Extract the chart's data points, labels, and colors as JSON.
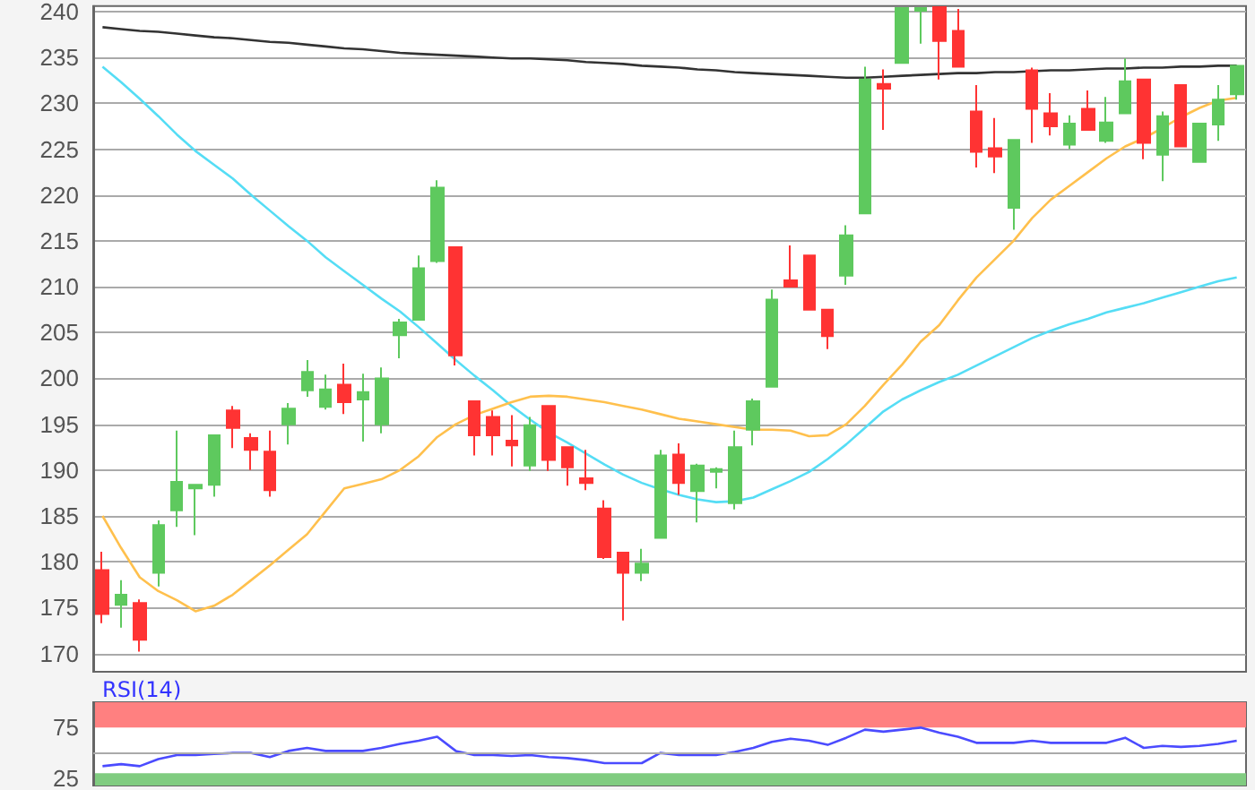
{
  "chart_data": [
    {
      "type": "candlestick",
      "categories": [
        null,
        null,
        null,
        null,
        null,
        null,
        null,
        null,
        null,
        null,
        null,
        null,
        null,
        null,
        null,
        null,
        null,
        null,
        null,
        null,
        null,
        null,
        null,
        null,
        null,
        null,
        null,
        null,
        null,
        null,
        null,
        null,
        null,
        null,
        null,
        null,
        null,
        null,
        null,
        null,
        null,
        null,
        null,
        null,
        null,
        null,
        null,
        null,
        null,
        null,
        null,
        null,
        null,
        null,
        null,
        null,
        null,
        null,
        null,
        null,
        null,
        null
      ],
      "ohlc": [
        [
          179.1,
          181.1,
          173.3,
          174.3
        ],
        [
          175.3,
          178,
          172.8,
          176.4
        ],
        [
          175.5,
          175.9,
          170.2,
          171.5
        ],
        [
          178.8,
          184.5,
          177.3,
          184
        ],
        [
          185.6,
          194.3,
          183.8,
          188.7
        ],
        [
          188,
          188.5,
          182.9,
          188.4
        ],
        [
          188.4,
          193.8,
          187.1,
          193.8
        ],
        [
          196.5,
          197,
          192.4,
          194.6
        ],
        [
          193.5,
          194,
          190,
          192.2
        ],
        [
          192,
          194.3,
          187.1,
          187.8
        ],
        [
          195,
          197.3,
          192.8,
          196.7
        ],
        [
          198.7,
          202,
          198,
          200.7
        ],
        [
          196.9,
          200.4,
          196.6,
          198.8
        ],
        [
          199.3,
          201.6,
          196.1,
          197.4
        ],
        [
          197.7,
          200.5,
          193.1,
          198.5
        ],
        [
          195,
          201.2,
          194,
          200
        ],
        [
          204.7,
          206.5,
          202.2,
          206.1
        ],
        [
          206.4,
          213.4,
          206.4,
          212
        ],
        [
          212.8,
          221.6,
          212.6,
          220.8
        ],
        [
          214.3,
          214.3,
          201.4,
          202.5
        ],
        [
          197.5,
          197.5,
          191.6,
          193.8
        ],
        [
          195.8,
          196.5,
          191.6,
          193.8
        ],
        [
          193.2,
          196,
          190.4,
          192.7
        ],
        [
          190.5,
          195.8,
          189.9,
          194.9
        ],
        [
          197,
          197,
          189.9,
          191.1
        ],
        [
          192.5,
          192.5,
          188.3,
          190.3
        ],
        [
          189.1,
          192.2,
          187.8,
          188.6
        ],
        [
          185.8,
          186.7,
          180.3,
          180.5
        ],
        [
          181,
          181,
          173.6,
          178.8
        ],
        [
          178.8,
          181.4,
          177.9,
          179.8
        ],
        [
          182.6,
          192.2,
          182.6,
          191.6
        ],
        [
          191.7,
          192.9,
          187.3,
          188.6
        ],
        [
          187.7,
          190.7,
          184.3,
          190.5
        ],
        [
          189.8,
          190.3,
          188,
          190.1
        ],
        [
          186.4,
          194.3,
          185.7,
          192.5
        ],
        [
          194.4,
          197.8,
          192.7,
          197.5
        ],
        [
          199.1,
          209.7,
          199.1,
          208.6
        ],
        [
          210.7,
          214.5,
          210,
          210
        ],
        [
          213.4,
          213.4,
          207.5,
          207.5
        ],
        [
          207.5,
          207.5,
          203.2,
          204.6
        ],
        [
          211.2,
          216.7,
          210.2,
          215.6
        ],
        [
          218,
          234,
          218,
          232.6
        ],
        [
          232.1,
          233.7,
          227.1,
          231.6
        ],
        [
          234.4,
          240.5,
          234.4,
          240.4
        ],
        [
          240.1,
          240.5,
          236.5,
          240.4
        ],
        [
          240.5,
          240.5,
          232.6,
          236.8
        ],
        [
          237.9,
          240.3,
          234,
          234
        ],
        [
          229.1,
          232,
          223,
          224.7
        ],
        [
          225.1,
          228.4,
          222.4,
          224.2
        ],
        [
          218.6,
          226,
          216.2,
          226
        ],
        [
          233.6,
          233.9,
          225.7,
          229.4
        ],
        [
          228.9,
          231.1,
          226.5,
          227.5
        ],
        [
          225.5,
          228.7,
          225,
          227.8
        ],
        [
          229.4,
          231.4,
          227.1,
          227.1
        ],
        [
          225.9,
          230.7,
          225.7,
          227.9
        ],
        [
          228.9,
          234.9,
          228.9,
          232.4
        ],
        [
          232.6,
          232.6,
          223.9,
          225.7
        ],
        [
          224.4,
          229.1,
          221.5,
          228.6
        ],
        [
          232,
          232,
          225.3,
          225.3
        ],
        [
          223.6,
          227.8,
          223.6,
          227.8
        ],
        [
          227.7,
          232,
          225.9,
          230.4
        ],
        [
          231,
          234.1,
          230.4,
          234.1
        ]
      ],
      "colors": [
        "#ff3333",
        "#5ec95e",
        "#ff3333",
        "#5ec95e",
        "#5ec95e",
        "#5ec95e",
        "#5ec95e",
        "#ff3333",
        "#ff3333",
        "#ff3333",
        "#5ec95e",
        "#5ec95e",
        "#5ec95e",
        "#ff3333",
        "#5ec95e",
        "#5ec95e",
        "#5ec95e",
        "#5ec95e",
        "#5ec95e",
        "#ff3333",
        "#ff3333",
        "#ff3333",
        "#ff3333",
        "#5ec95e",
        "#ff3333",
        "#ff3333",
        "#ff3333",
        "#ff3333",
        "#ff3333",
        "#5ec95e",
        "#5ec95e",
        "#ff3333",
        "#5ec95e",
        "#5ec95e",
        "#5ec95e",
        "#5ec95e",
        "#5ec95e",
        "#ff3333",
        "#ff3333",
        "#ff3333",
        "#5ec95e",
        "#5ec95e",
        "#ff3333",
        "#5ec95e",
        "#5ec95e",
        "#ff3333",
        "#ff3333",
        "#ff3333",
        "#ff3333",
        "#5ec95e",
        "#ff3333",
        "#ff3333",
        "#5ec95e",
        "#ff3333",
        "#5ec95e",
        "#5ec95e",
        "#ff3333",
        "#5ec95e",
        "#ff3333",
        "#5ec95e",
        "#5ec95e",
        "#5ec95e"
      ],
      "series": [
        {
          "type": "line",
          "color": "#333333",
          "values": [
            238.3,
            238.1,
            237.9,
            237.8,
            237.6,
            237.4,
            237.2,
            237.1,
            236.9,
            236.7,
            236.6,
            236.4,
            236.2,
            236.0,
            235.9,
            235.7,
            235.5,
            235.4,
            235.3,
            235.2,
            235.1,
            235.0,
            234.9,
            234.9,
            234.8,
            234.7,
            234.5,
            234.4,
            234.3,
            234.1,
            234.0,
            233.9,
            233.7,
            233.6,
            233.4,
            233.3,
            233.2,
            233.1,
            233.0,
            232.9,
            232.8,
            232.8,
            232.9,
            233.0,
            233.1,
            233.2,
            233.3,
            233.3,
            233.4,
            233.4,
            233.5,
            233.6,
            233.6,
            233.7,
            233.8,
            233.8,
            233.9,
            233.9,
            234.0,
            234.0,
            234.1,
            234.1
          ]
        },
        {
          "type": "line",
          "color": "#55ddf5",
          "values": [
            234,
            232.3,
            230.5,
            228.6,
            226.6,
            224.8,
            223.3,
            221.8,
            220,
            218.3,
            216.6,
            215,
            213.2,
            211.7,
            210.2,
            208.7,
            207.3,
            205.6,
            203.8,
            202,
            200.3,
            198.7,
            197,
            195.5,
            194.1,
            193,
            191.8,
            190.6,
            189.5,
            188.6,
            187.9,
            187.3,
            186.8,
            186.5,
            186.6,
            187,
            187.9,
            188.8,
            189.8,
            191.2,
            192.8,
            194.6,
            196.4,
            197.7,
            198.7,
            199.6,
            200.4,
            201.4,
            202.4,
            203.4,
            204.4,
            205.2,
            205.9,
            206.5,
            207.2,
            207.7,
            208.2,
            208.8,
            209.4,
            210,
            210.6,
            211
          ]
        },
        {
          "type": "line",
          "color": "#ffc04d",
          "values": [
            185,
            181.5,
            178.3,
            176.8,
            175.8,
            174.6,
            175.2,
            176.4,
            178,
            179.6,
            181.3,
            183,
            185.5,
            188,
            188.5,
            189,
            190,
            191.5,
            193.6,
            195,
            196,
            196.7,
            197.4,
            198,
            198.1,
            198,
            197.7,
            197.4,
            197,
            196.6,
            196.1,
            195.6,
            195.3,
            195,
            194.7,
            194.4,
            194.4,
            194.3,
            193.7,
            193.8,
            195,
            197,
            199.3,
            201.5,
            204,
            205.8,
            208.5,
            211,
            213,
            215,
            217.5,
            219.5,
            221,
            222.5,
            224,
            225.3,
            226.2,
            227.3,
            228.5,
            229.5,
            230.3,
            230.6
          ]
        }
      ],
      "ylim": [
        168,
        240.6
      ],
      "yticks": [
        170,
        175,
        180,
        185,
        190,
        195,
        200,
        205,
        210,
        215,
        220,
        225,
        230,
        235,
        240
      ],
      "grid": "y",
      "tick_labels": "y",
      "marker": "none"
    },
    {
      "type": "line",
      "title": "RSI(14)",
      "categories": [
        null,
        null,
        null,
        null,
        null,
        null,
        null,
        null,
        null,
        null,
        null,
        null,
        null,
        null,
        null,
        null,
        null,
        null,
        null,
        null,
        null,
        null,
        null,
        null,
        null,
        null,
        null,
        null,
        null,
        null,
        null,
        null,
        null,
        null,
        null,
        null,
        null,
        null,
        null,
        null,
        null,
        null,
        null,
        null,
        null,
        null,
        null,
        null,
        null,
        null,
        null,
        null,
        null,
        null,
        null,
        null,
        null,
        null,
        null,
        null,
        null,
        null
      ],
      "series": [
        {
          "color": "#4b4bff",
          "values": [
            37,
            39,
            37,
            44,
            48,
            48,
            49,
            50,
            50,
            46,
            52,
            55,
            52,
            52,
            52,
            55,
            59,
            62,
            66,
            52,
            48,
            48,
            47,
            48,
            46,
            45,
            43,
            40,
            40,
            40,
            50,
            48,
            48,
            48,
            51,
            55,
            61,
            64,
            62,
            58,
            65,
            73,
            71,
            73,
            75,
            70,
            66,
            60,
            60,
            60,
            62,
            60,
            60,
            60,
            60,
            65,
            55,
            57,
            56,
            57,
            59,
            62
          ]
        }
      ],
      "ylim": [
        18,
        100
      ],
      "yticks": [
        25,
        75
      ],
      "bands": [
        {
          "axis": "y",
          "from": 75,
          "to": 100,
          "color": "#ff8080"
        },
        {
          "axis": "y",
          "from": 18,
          "to": 30,
          "color": "#80cc80"
        }
      ],
      "ref_lines": [
        {
          "axis": "y",
          "value": 50,
          "color": "#aaaaaa"
        }
      ],
      "tick_labels": "y",
      "marker": "none"
    }
  ]
}
